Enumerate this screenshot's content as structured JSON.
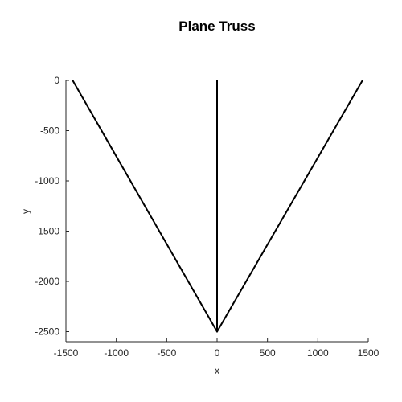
{
  "chart_data": {
    "type": "line",
    "title": "Plane Truss",
    "xlabel": "x",
    "ylabel": "y",
    "xlim": [
      -1500,
      1500
    ],
    "ylim": [
      -2600,
      0
    ],
    "xticks": [
      -1500,
      -1000,
      -500,
      0,
      500,
      1000,
      1500
    ],
    "yticks": [
      0,
      -500,
      -1000,
      -1500,
      -2000,
      -2500
    ],
    "xtick_labels": [
      "-1500",
      "-1000",
      "-500",
      "0",
      "500",
      "1000",
      "1500"
    ],
    "ytick_labels": [
      "0",
      "-500",
      "-1000",
      "-1500",
      "-2000",
      "-2500"
    ],
    "grid": false,
    "line_color": "#000000",
    "series": [
      {
        "x": [
          -1433,
          0
        ],
        "y": [
          0,
          -2500
        ]
      },
      {
        "x": [
          0,
          0
        ],
        "y": [
          0,
          -2500
        ]
      },
      {
        "x": [
          1443,
          0
        ],
        "y": [
          0,
          -2500
        ]
      }
    ]
  }
}
